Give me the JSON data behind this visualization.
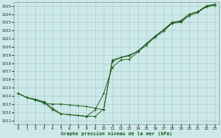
{
  "title": "Graphe pression niveau de la mer (hPa)",
  "background_color": "#cde8e8",
  "grid_color": "#aacccc",
  "line_color": "#1a5c1a",
  "marker_color": "#1a5c1a",
  "xlim": [
    -0.5,
    23.5
  ],
  "ylim": [
    1010.5,
    1025.5
  ],
  "yticks": [
    1011,
    1012,
    1013,
    1014,
    1015,
    1016,
    1017,
    1018,
    1019,
    1020,
    1021,
    1022,
    1023,
    1024,
    1025
  ],
  "xticks": [
    0,
    1,
    2,
    3,
    4,
    5,
    6,
    7,
    8,
    9,
    10,
    11,
    12,
    13,
    14,
    15,
    16,
    17,
    18,
    19,
    20,
    21,
    22,
    23
  ],
  "series": [
    [
      1014.3,
      1013.8,
      1013.6,
      1013.3,
      1012.5,
      1011.8,
      1011.7,
      1011.6,
      1011.5,
      1012.3,
      1014.3,
      1017.5,
      1018.4,
      1018.5,
      1019.4,
      1020.2,
      1021.2,
      1021.9,
      1022.9,
      1023.0,
      1023.8,
      1024.2,
      1024.9,
      1025.1
    ],
    [
      1014.3,
      1013.8,
      1013.5,
      1013.2,
      1012.3,
      1011.8,
      1011.7,
      1011.6,
      1011.5,
      1011.5,
      1012.4,
      1018.2,
      1018.7,
      1018.9,
      1019.5,
      1020.4,
      1021.3,
      1022.1,
      1022.9,
      1023.1,
      1024.0,
      1024.3,
      1025.0,
      1025.2
    ],
    [
      1014.3,
      1013.8,
      1013.5,
      1013.1,
      1013.0,
      1013.0,
      1012.9,
      1012.8,
      1012.7,
      1012.5,
      1012.3,
      1018.4,
      1018.7,
      1019.0,
      1019.5,
      1020.4,
      1021.3,
      1022.1,
      1023.0,
      1023.2,
      1024.0,
      1024.3,
      1025.0,
      1025.2
    ]
  ]
}
